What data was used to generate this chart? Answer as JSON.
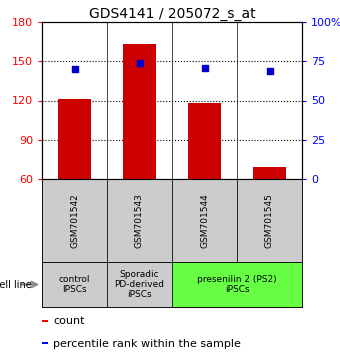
{
  "title": "GDS4141 / 205072_s_at",
  "samples": [
    "GSM701542",
    "GSM701543",
    "GSM701544",
    "GSM701545"
  ],
  "counts": [
    121,
    163,
    118,
    69
  ],
  "percentiles": [
    70,
    74,
    71,
    69
  ],
  "ylim_left": [
    60,
    180
  ],
  "ylim_right": [
    0,
    100
  ],
  "yticks_left": [
    60,
    90,
    120,
    150,
    180
  ],
  "yticks_right": [
    0,
    25,
    50,
    75,
    100
  ],
  "ytick_labels_right": [
    "0",
    "25",
    "50",
    "75",
    "100%"
  ],
  "bar_color": "#cc0000",
  "scatter_color": "#0000cc",
  "groups": [
    {
      "label": "control\nIPSCs",
      "samples": [
        0
      ],
      "color": "#cccccc"
    },
    {
      "label": "Sporadic\nPD-derived\niPSCs",
      "samples": [
        1
      ],
      "color": "#cccccc"
    },
    {
      "label": "presenilin 2 (PS2)\niPSCs",
      "samples": [
        2,
        3
      ],
      "color": "#66ff44"
    }
  ],
  "cell_line_label": "cell line",
  "legend_count_label": "count",
  "legend_percentile_label": "percentile rank within the sample",
  "title_fontsize": 10,
  "tick_fontsize": 8,
  "sample_fontsize": 6.5,
  "group_fontsize": 6.5,
  "legend_fontsize": 8
}
